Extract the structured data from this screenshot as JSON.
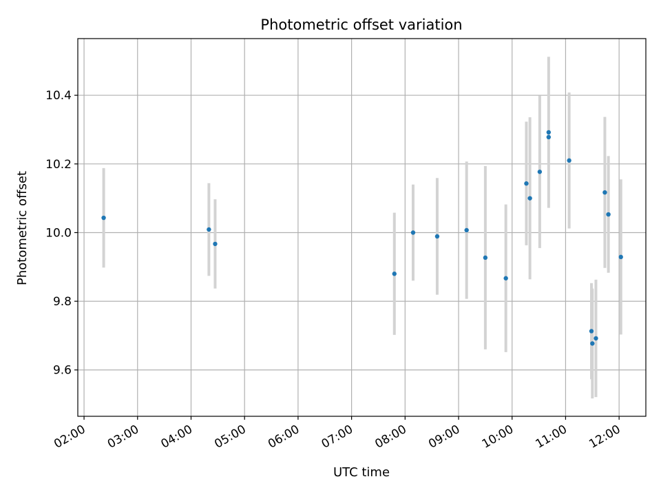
{
  "chart_data": {
    "type": "scatter",
    "title": "Photometric offset variation",
    "xlabel": "UTC time",
    "ylabel": "Photometric offset",
    "x_ticks": [
      "02:00",
      "03:00",
      "04:00",
      "05:00",
      "06:00",
      "07:00",
      "08:00",
      "09:00",
      "10:00",
      "11:00",
      "12:00"
    ],
    "y_ticks": [
      "9.6",
      "9.8",
      "10.0",
      "10.2",
      "10.4"
    ],
    "xlim": [
      "01:53",
      "12:30"
    ],
    "ylim": [
      9.465,
      10.565
    ],
    "grid": true,
    "colors": {
      "point": "#1f77b4",
      "errorbar": "#d3d3d3",
      "grid": "#b0b0b0"
    },
    "series": [
      {
        "points": [
          {
            "time": "02:22",
            "y": 10.043,
            "err": 0.145
          },
          {
            "time": "04:20",
            "y": 10.009,
            "err": 0.135
          },
          {
            "time": "04:27",
            "y": 9.967,
            "err": 0.13
          },
          {
            "time": "07:48",
            "y": 9.88,
            "err": 0.178
          },
          {
            "time": "08:09",
            "y": 10.0,
            "err": 0.14
          },
          {
            "time": "08:36",
            "y": 9.989,
            "err": 0.17
          },
          {
            "time": "09:09",
            "y": 10.007,
            "err": 0.2
          },
          {
            "time": "09:30",
            "y": 9.927,
            "err": 0.267
          },
          {
            "time": "09:53",
            "y": 9.867,
            "err": 0.215
          },
          {
            "time": "10:16",
            "y": 10.143,
            "err": 0.18
          },
          {
            "time": "10:20",
            "y": 10.1,
            "err": 0.236
          },
          {
            "time": "10:31",
            "y": 10.177,
            "err": 0.222
          },
          {
            "time": "10:41",
            "y": 10.292,
            "err": 0.22
          },
          {
            "time": "10:41",
            "y": 10.278,
            "err": 0.0
          },
          {
            "time": "11:04",
            "y": 10.21,
            "err": 0.198
          },
          {
            "time": "11:29",
            "y": 9.713,
            "err": 0.14
          },
          {
            "time": "11:30",
            "y": 9.677,
            "err": 0.16
          },
          {
            "time": "11:34",
            "y": 9.692,
            "err": 0.171
          },
          {
            "time": "11:44",
            "y": 10.117,
            "err": 0.22
          },
          {
            "time": "11:48",
            "y": 10.053,
            "err": 0.17
          },
          {
            "time": "12:02",
            "y": 9.929,
            "err": 0.226
          }
        ]
      }
    ]
  }
}
